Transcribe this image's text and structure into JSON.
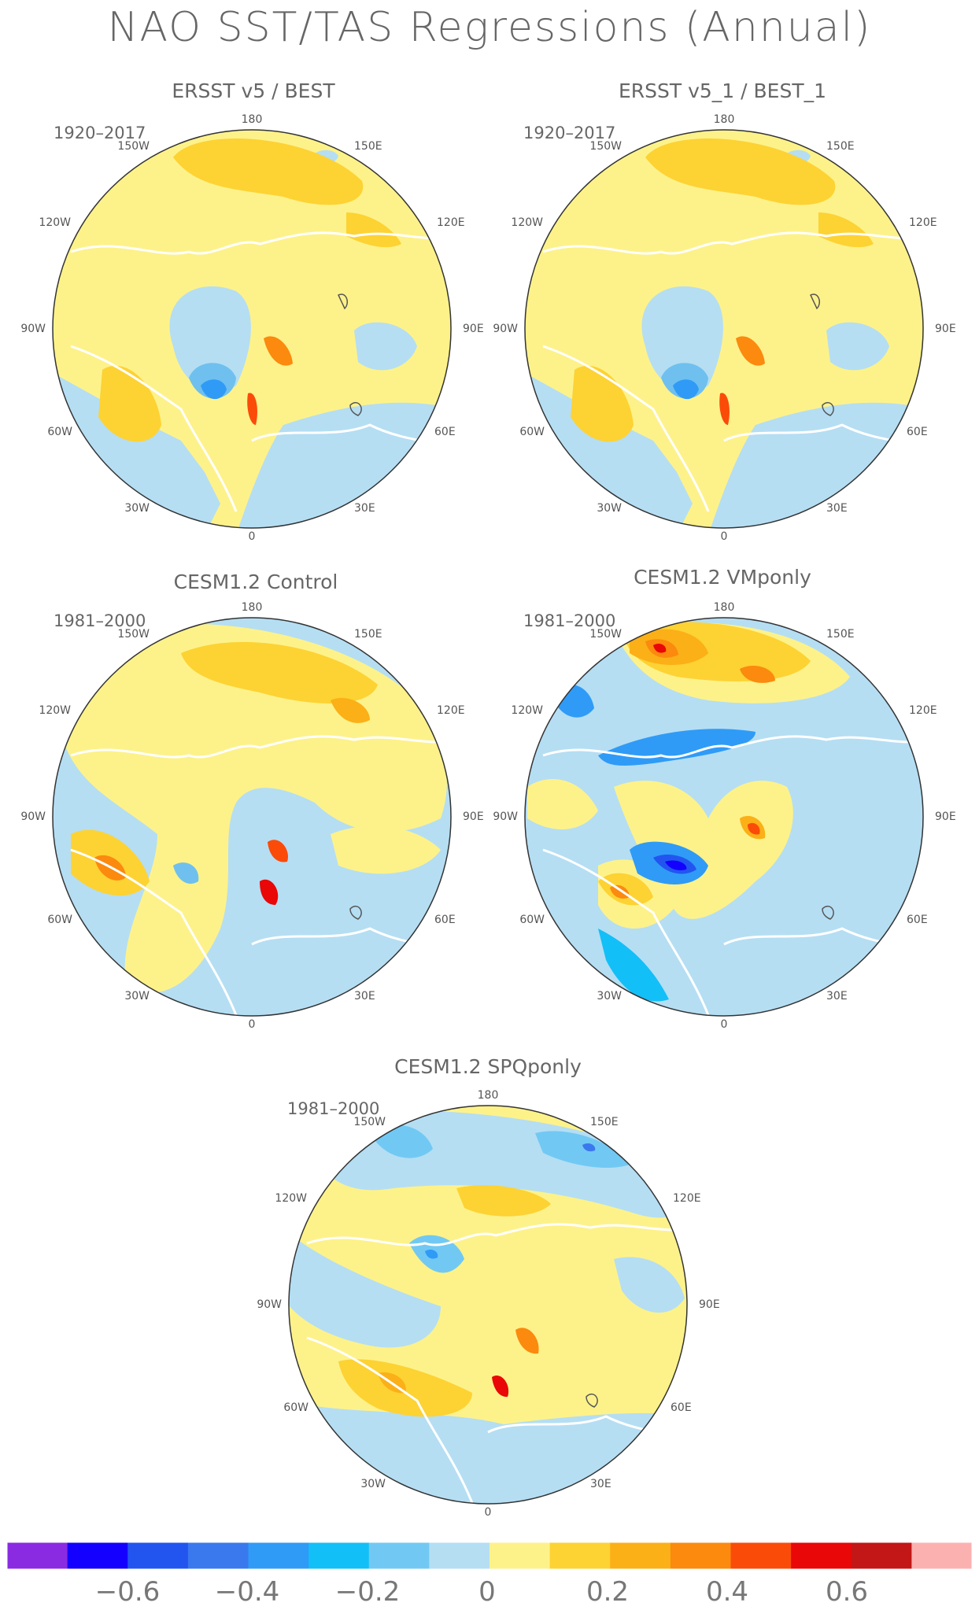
{
  "figure": {
    "title": "NAO SST/TAS Regressions (Annual)"
  },
  "panels": [
    {
      "title": "ERSST v5 / BEST",
      "period": "1920–2017"
    },
    {
      "title": "ERSST v5_1 / BEST_1",
      "period": "1920–2017"
    },
    {
      "title": "CESM1.2 Control",
      "period": "1981–2000"
    },
    {
      "title": "CESM1.2 VMponly",
      "period": "1981–2000"
    },
    {
      "title": "CESM1.2 SPQponly",
      "period": "1981–2000"
    }
  ],
  "longitude_labels": {
    "180": "180",
    "150w": "150W",
    "150e": "150E",
    "120w": "120W",
    "120e": "120E",
    "90w": "90W",
    "90e": "90E",
    "60w": "60W",
    "60e": "60E",
    "30w": "30W",
    "30e": "30E",
    "0": "0"
  },
  "colorbar": {
    "colors": [
      "#8a2be2",
      "#1400ff",
      "#2255f0",
      "#3a78ee",
      "#2f9bf7",
      "#13bff7",
      "#71c9f3",
      "#b5def3",
      "#fdf28a",
      "#fdd233",
      "#fbb017",
      "#fb8a0e",
      "#fb4b09",
      "#e90707",
      "#c31616",
      "#fcb1b1"
    ],
    "tick_labels": [
      "−0.6",
      "−0.4",
      "−0.2",
      "0",
      "0.2",
      "0.4",
      "0.6"
    ]
  },
  "colors": {
    "ocean_base_pos": "#fdf28a",
    "ocean_base_neg": "#b5def3",
    "coast": "#ffffff",
    "lakes": "#555555"
  }
}
